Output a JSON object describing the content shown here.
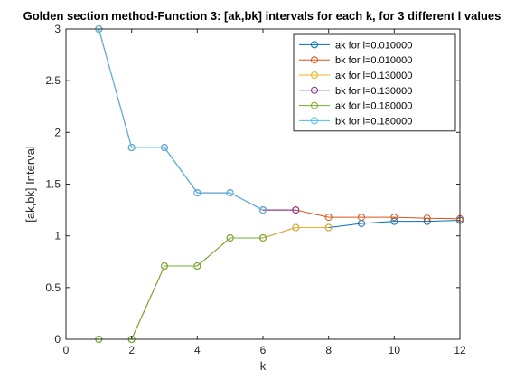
{
  "chart_data": {
    "type": "line",
    "title": "Golden section method-Function 3: [ak,bk] intervals for each k, for 3 different l values",
    "xlabel": "k",
    "ylabel": "[ak,bk] Interval",
    "xlim": [
      0,
      12
    ],
    "ylim": [
      0,
      3
    ],
    "xticks": [
      0,
      2,
      4,
      6,
      8,
      10,
      12
    ],
    "yticks": [
      0,
      0.5,
      1,
      1.5,
      2,
      2.5,
      3
    ],
    "xtick_labels": [
      "0",
      "2",
      "4",
      "6",
      "8",
      "10",
      "12"
    ],
    "ytick_labels": [
      "0",
      "0.5",
      "1",
      "1.5",
      "2",
      "2.5",
      "3"
    ],
    "grid": false,
    "legend_position": "top-right",
    "series": [
      {
        "name": "ak for l=0.010000",
        "color": "#0072BD",
        "x": [
          1,
          2,
          3,
          4,
          5,
          6,
          7,
          8,
          9,
          10,
          11,
          12
        ],
        "y": [
          0,
          0,
          0.708,
          0.708,
          0.98,
          0.98,
          1.08,
          1.08,
          1.12,
          1.14,
          1.14,
          1.15
        ]
      },
      {
        "name": "bk for l=0.010000",
        "color": "#D95319",
        "x": [
          1,
          2,
          3,
          4,
          5,
          6,
          7,
          8,
          9,
          10,
          11,
          12
        ],
        "y": [
          3,
          1.854,
          1.854,
          1.416,
          1.416,
          1.25,
          1.25,
          1.18,
          1.18,
          1.18,
          1.17,
          1.165
        ]
      },
      {
        "name": "ak for l=0.130000",
        "color": "#EDB120",
        "x": [
          1,
          2,
          3,
          4,
          5,
          6,
          7,
          8
        ],
        "y": [
          0,
          0,
          0.708,
          0.708,
          0.98,
          0.98,
          1.08,
          1.08
        ]
      },
      {
        "name": "bk for l=0.130000",
        "color": "#7E2F8E",
        "x": [
          1,
          2,
          3,
          4,
          5,
          6,
          7
        ],
        "y": [
          3,
          1.854,
          1.854,
          1.416,
          1.416,
          1.25,
          1.25
        ]
      },
      {
        "name": "ak for l=0.180000",
        "color": "#77AC30",
        "x": [
          1,
          2,
          3,
          4,
          5,
          6
        ],
        "y": [
          0,
          0,
          0.708,
          0.708,
          0.98,
          0.98
        ]
      },
      {
        "name": "bk for l=0.180000",
        "color": "#4DBEEE",
        "x": [
          1,
          2,
          3,
          4,
          5,
          6
        ],
        "y": [
          3,
          1.854,
          1.854,
          1.416,
          1.416,
          1.25
        ]
      }
    ]
  }
}
